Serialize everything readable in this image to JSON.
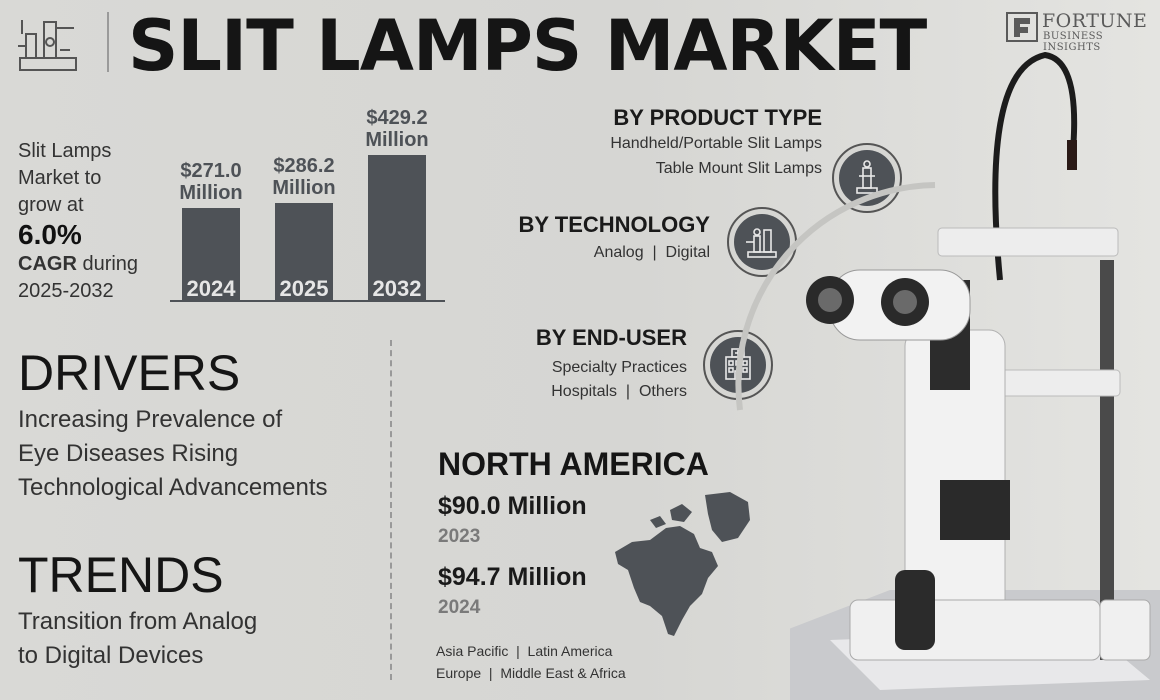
{
  "header": {
    "title": "SLIT LAMPS MARKET",
    "logo_name": "FORTUNE",
    "logo_sub": "BUSINESS INSIGHTS",
    "header_icon": "slit-lamp-icon"
  },
  "growth": {
    "line1": "Slit Lamps",
    "line2": "Market to",
    "line3": "grow at",
    "rate": "6.0%",
    "cagr": "CAGR",
    "during": " during",
    "period": "2025-2032"
  },
  "chart_data": {
    "type": "bar",
    "categories": [
      "2024",
      "2025",
      "2032"
    ],
    "values": [
      271.0,
      286.2,
      429.2
    ],
    "value_labels": [
      "$271.0",
      "$286.2",
      "$429.2"
    ],
    "unit_label": "Million"
  },
  "segments": {
    "product": {
      "title": "BY PRODUCT TYPE",
      "line1": "Handheld/Portable Slit Lamps",
      "line2": "Table Mount Slit Lamps",
      "icon": "slit-lamp-icon"
    },
    "technology": {
      "title": "BY TECHNOLOGY",
      "line1": "Analog  |  Digital",
      "icon": "microscope-icon"
    },
    "enduser": {
      "title": "BY END-USER",
      "line1": "Specialty Practices",
      "line2": "Hospitals  |  Others",
      "icon": "hospital-icon"
    }
  },
  "drivers": {
    "title": "DRIVERS",
    "lines": [
      "Increasing Prevalence of",
      "Eye Diseases Rising",
      "Technological Advancements"
    ]
  },
  "trends": {
    "title": "TRENDS",
    "lines": [
      "Transition from Analog",
      "to Digital Devices"
    ]
  },
  "region": {
    "title": "NORTH AMERICA",
    "val1": "$90.0 Million",
    "year1": "2023",
    "val2": "$94.7 Million",
    "year2": "2024",
    "others_line1": "Asia Pacific  |  Latin America",
    "others_line2": "Europe  |  Middle East & Africa",
    "map_icon": "north-america-map-icon"
  },
  "colors": {
    "bar": "#4e5257",
    "background": "#d9d9d6",
    "accent_grey": "#7a7a7a"
  }
}
